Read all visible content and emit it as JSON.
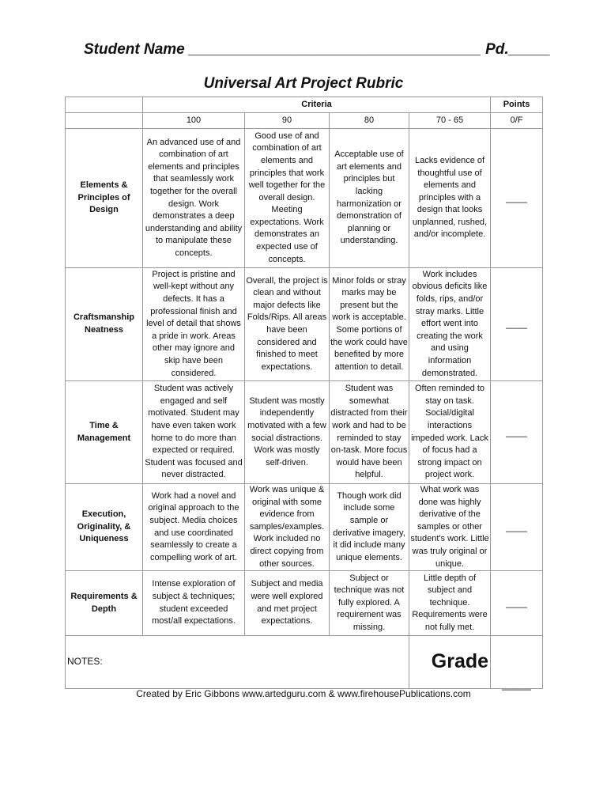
{
  "header": {
    "student_name": "Student Name ___________________________________ Pd._____",
    "title": "Universal Art Project Rubric"
  },
  "table": {
    "criteria_label": "Criteria",
    "points_label": "Points",
    "levels": [
      "100",
      "90",
      "80",
      "70 - 65",
      "0/F"
    ],
    "rows": [
      {
        "name": "Elements & Principles of Design",
        "cells": [
          "An advanced use of and combination of art elements and principles that seamlessly work together for the overall design.  Work demonstrates a deep understanding and ability to manipulate these concepts.",
          "Good use of and combination of art elements and principles that work well together for the overall design. Meeting expectations. Work demonstrates an expected use of concepts.",
          "Acceptable use of art elements and principles but lacking harmonization or demonstration of planning or understanding.",
          "Lacks evidence of thoughtful use of elements and principles with a design that looks unplanned, rushed, and/or incomplete."
        ],
        "points": "____"
      },
      {
        "name": "Craftsmanship Neatness",
        "cells": [
          "Project is pristine and well-kept without any defects. It has a professional finish and level of detail that shows a pride in work. Areas other may ignore and skip have been considered.",
          "Overall, the project is clean and without major defects like Folds/Rips. All areas have been considered and finished to meet expectations.",
          "Minor folds or stray marks may be present but the work is acceptable. Some portions of the work could have benefited by more attention to detail.",
          "Work includes obvious deficits like folds, rips, and/or stray marks. Little effort went into creating the work and using information demonstrated."
        ],
        "points": "____"
      },
      {
        "name": "Time & Management",
        "cells": [
          "Student was actively engaged and self motivated. Student may have even taken work home to do more than expected or required. Student was focused and never distracted.",
          "Student was mostly independently motivated with a few social distractions. Work was mostly self-driven.",
          "Student was somewhat distracted from their work and had to be reminded to stay on-task. More focus would have been helpful.",
          "Often reminded to stay on task. Social/digital interactions impeded work. Lack of focus had a strong impact on project work."
        ],
        "points": "____"
      },
      {
        "name": "Execution, Originality, & Uniqueness",
        "cells": [
          "Work had a novel and original approach to the subject. Media choices and use coordinated seamlessly to create a compelling work of art.",
          "Work was unique & original with some evidence from samples/examples. Work included no direct copying from other sources.",
          "Though work did include some sample or derivative imagery, it did include many unique elements.",
          "What work was done was highly derivative of the samples or other student's work. Little was truly original or unique."
        ],
        "points": "____"
      },
      {
        "name": "Requirements & Depth",
        "cells": [
          "Intense exploration of subject & techniques; student exceeded most/all expectations.",
          "Subject and media were well explored and met project expectations.",
          "Subject or technique was not fully explored. A requirement was missing.",
          "Little depth of subject and technique. Requirements were not fully met."
        ],
        "points": "____"
      }
    ],
    "notes_label": "NOTES:",
    "grade_label": "Grade",
    "grade_blank": "___"
  },
  "footer": "Created by Eric Gibbons www.artedguru.com & www.firehousePublications.com"
}
